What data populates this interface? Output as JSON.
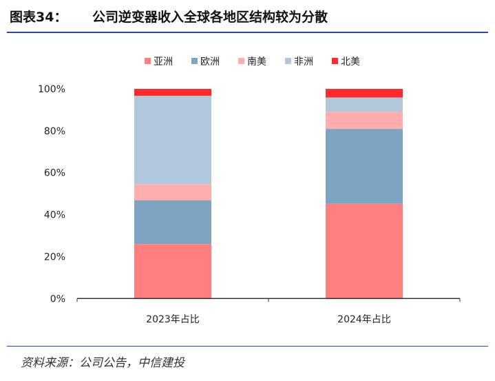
{
  "header": {
    "figure_no": "图表34：",
    "title": "公司逆变器收入全球各地区结构较为分散"
  },
  "footer": {
    "source": "资料来源：公司公告，中信建投"
  },
  "chart_data": {
    "type": "bar",
    "stacked": true,
    "categories": [
      "2023年占比",
      "2024年占比"
    ],
    "series": [
      {
        "name": "亚洲",
        "color": "#ff7f7f",
        "values": [
          26.0,
          45.2
        ]
      },
      {
        "name": "欧洲",
        "color": "#7fa4c2",
        "values": [
          20.9,
          35.7
        ]
      },
      {
        "name": "南美",
        "color": "#ffadad",
        "values": [
          7.7,
          8.2
        ]
      },
      {
        "name": "非洲",
        "color": "#b0c7dc",
        "values": [
          42.1,
          6.8
        ]
      },
      {
        "name": "北美",
        "color": "#ff2a2a",
        "values": [
          3.3,
          4.1
        ]
      }
    ],
    "yticks": [
      "0%",
      "20%",
      "40%",
      "60%",
      "80%",
      "100%"
    ],
    "ylim": [
      0,
      100
    ],
    "legend": "top"
  }
}
